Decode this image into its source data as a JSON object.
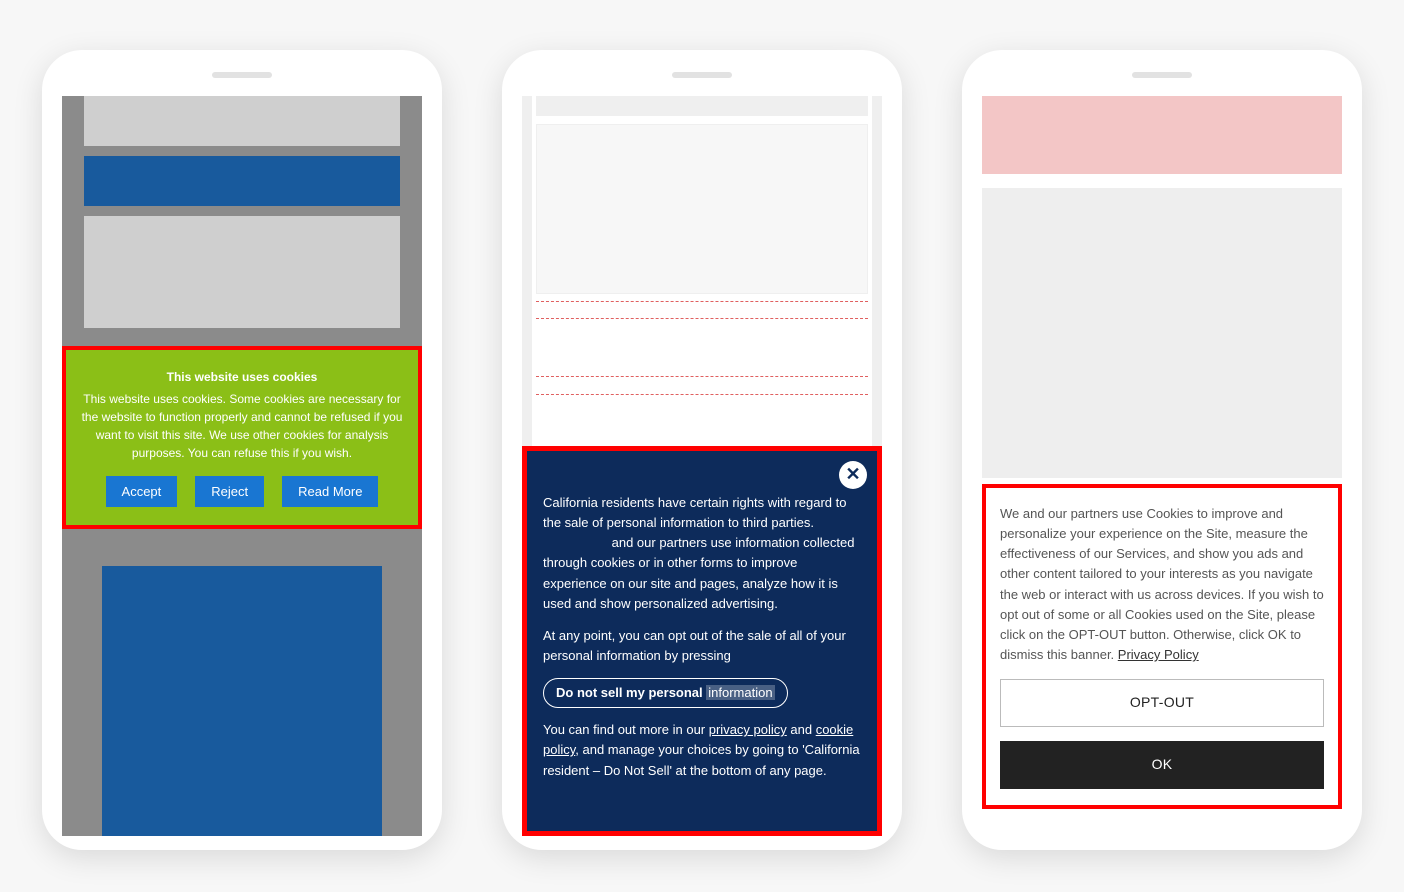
{
  "colors": {
    "page_bg": "#f7f7f7",
    "phone_bg": "#ffffff",
    "highlight_border": "#ff0000",
    "p1_bg": "#8b8b8b",
    "p1_grey": "#cfcfcf",
    "p1_blue": "#185a9d",
    "cookie_green_bg": "#8bbf17",
    "cookie_btn_bg": "#1976d2",
    "ccpa_bg": "#0d2b5b",
    "p3_pink": "#f3c6c6",
    "p3_grey": "#eeeeee",
    "notice_ok_bg": "#222222"
  },
  "phone1": {
    "cookie": {
      "title": "This website uses cookies",
      "body": "This website uses cookies. Some cookies are necessary for the website to function properly and cannot be refused if you want to visit this site. We use other cookies for analysis purposes. You can refuse this if you wish.",
      "accept": "Accept",
      "reject": "Reject",
      "read_more": "Read More"
    }
  },
  "phone2": {
    "ccpa": {
      "para1a": "California residents have certain rights with regard to the sale of personal information to third parties.",
      "para1b": "and our partners use information collected through cookies or in other forms to improve experience on our site and pages, analyze how it is used and show personalized advertising.",
      "para2": "At any point, you can opt out of the sale of all of your personal information by pressing",
      "pill_a": "Do not sell my personal ",
      "pill_b": "information",
      "para3a": "You can find out more in our ",
      "link_pp": "privacy policy",
      "para3b": " and ",
      "link_cp": "cookie policy",
      "para3c": ", and manage your choices by going to 'California resident – Do Not Sell' at the bottom of any page."
    }
  },
  "phone3": {
    "notice": {
      "body": "We and our partners use Cookies to improve and personalize your experience on the Site, measure the effectiveness of our Services, and show you ads and other content tailored to your interests as you navigate the web or interact with us across devices. If you wish to opt out of some or all Cookies used on the Site, please click on the OPT-OUT button. Otherwise, click OK to dismiss this banner. ",
      "privacy_link": "Privacy Policy",
      "opt_out": "OPT-OUT",
      "ok": "OK"
    }
  }
}
